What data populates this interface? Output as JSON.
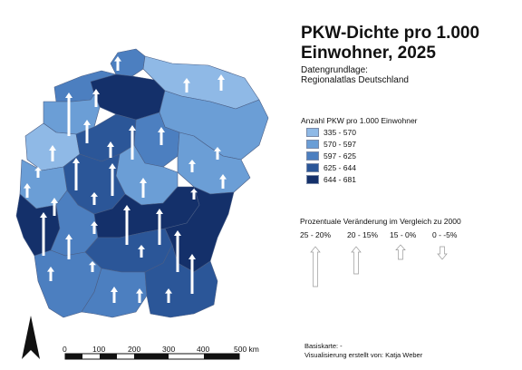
{
  "title": "PKW-Dichte pro 1.000 Einwohner, 2025",
  "source": {
    "label": "Datengrundlage:",
    "value": "Regionalatlas Deutschland"
  },
  "legend": {
    "title": "Anzahl PKW pro 1.000 Einwohner",
    "classes": [
      {
        "label": "335 - 570",
        "color": "#8fb9e6"
      },
      {
        "label": "570 - 597",
        "color": "#6b9ed6"
      },
      {
        "label": "597 - 625",
        "color": "#4c7fc0"
      },
      {
        "label": "625 - 644",
        "color": "#2b5698"
      },
      {
        "label": "644 - 681",
        "color": "#14306a"
      }
    ]
  },
  "arrow_legend": {
    "title": "Prozentuale Veränderung im Vergleich zu 2000",
    "classes": [
      {
        "label": "25 - 20%",
        "direction": "up"
      },
      {
        "label": "20 - 15%",
        "direction": "up"
      },
      {
        "label": "15 - 0%",
        "direction": "up"
      },
      {
        "label": "0 - -5%",
        "direction": "down"
      }
    ]
  },
  "scale_bar": {
    "ticks": [
      "0",
      "100",
      "200",
      "300",
      "400",
      "500 km"
    ]
  },
  "basemap": "Basiskarte: -",
  "credit": "Visualisierung erstellt von: Katja Weber",
  "north_arrow": "north-arrow-icon"
}
